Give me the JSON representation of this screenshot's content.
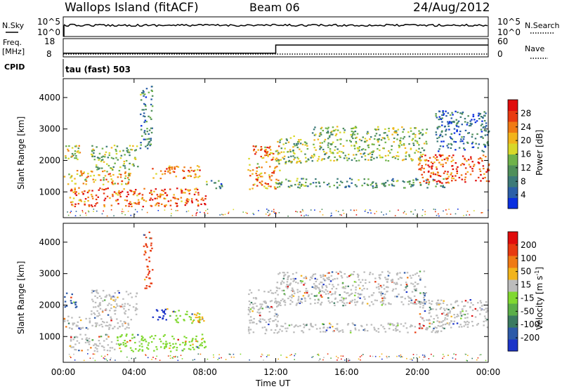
{
  "header": {
    "station": "Wallops Island (fitACF)",
    "beam": "Beam 06",
    "date": "24/Aug/2012"
  },
  "params": {
    "nsky_label": "N.Sky",
    "nsearch_label": "N.Search",
    "freq_label": "Freq.",
    "freq_unit": "[MHz]",
    "nave_label": "Nave",
    "cpid_label": "CPID",
    "cpid_value": "tau (fast) 503",
    "noise_ticks": [
      "10^5",
      "10^0"
    ],
    "freq_ticks": [
      "18",
      "8"
    ],
    "nave_ticks": [
      "60",
      "0"
    ],
    "freq_steps": [
      {
        "t": 0.0,
        "mhz": 10.0
      },
      {
        "t": 12.0,
        "mhz": 14.5
      },
      {
        "t": 24.0,
        "mhz": 14.5
      }
    ]
  },
  "chart_data": [
    {
      "type": "heatmap",
      "name": "power",
      "xlabel": "",
      "ylabel": "Slant Range [km]",
      "xlim": [
        0,
        24
      ],
      "ylim": [
        180,
        4600
      ],
      "ytick_values": [
        1000,
        2000,
        3000,
        4000
      ],
      "ytick_labels": [
        "1000",
        "2000",
        "3000",
        "4000"
      ],
      "colorbar": {
        "label": "Power [dB]",
        "tick_labels": [
          "4",
          "8",
          "12",
          "16",
          "20",
          "24",
          "28"
        ],
        "colors": [
          "#0a2fe0",
          "#2b5fa8",
          "#3c7a78",
          "#4f8f5a",
          "#6fb24a",
          "#d8d82a",
          "#f2b41c",
          "#f07a14",
          "#e83a10",
          "#e00c0c"
        ]
      },
      "echoes": [
        {
          "t0": 0.0,
          "t1": 1.0,
          "r0": 2050,
          "r1": 2500,
          "level": 0.55
        },
        {
          "t0": 0.0,
          "t1": 3.8,
          "r0": 1250,
          "r1": 1700,
          "level": 0.65
        },
        {
          "t0": 1.5,
          "t1": 4.2,
          "r0": 1700,
          "r1": 2500,
          "level": 0.45
        },
        {
          "t0": 0.3,
          "t1": 8.0,
          "r0": 550,
          "r1": 1150,
          "level": 0.8
        },
        {
          "t0": 4.3,
          "t1": 5.0,
          "r0": 2400,
          "r1": 4400,
          "level": 0.3
        },
        {
          "t0": 5.0,
          "t1": 7.7,
          "r0": 1450,
          "r1": 1850,
          "level": 0.75
        },
        {
          "t0": 8.0,
          "t1": 9.0,
          "r0": 1100,
          "r1": 1400,
          "level": 0.3
        },
        {
          "t0": 10.4,
          "t1": 12.2,
          "r0": 1100,
          "r1": 2500,
          "level": 0.7
        },
        {
          "t0": 12.0,
          "t1": 14.0,
          "r0": 1900,
          "r1": 2800,
          "level": 0.45
        },
        {
          "t0": 12.0,
          "t1": 21.5,
          "r0": 1150,
          "r1": 1450,
          "level": 0.35
        },
        {
          "t0": 14.0,
          "t1": 20.5,
          "r0": 2000,
          "r1": 3100,
          "level": 0.45
        },
        {
          "t0": 20.0,
          "t1": 24.0,
          "r0": 1300,
          "r1": 2200,
          "level": 0.85
        },
        {
          "t0": 21.0,
          "t1": 24.0,
          "r0": 2300,
          "r1": 3600,
          "level": 0.2
        }
      ]
    },
    {
      "type": "heatmap",
      "name": "velocity",
      "xlabel": "Time UT",
      "ylabel": "Slant Range [km]",
      "xlim": [
        0,
        24
      ],
      "ylim": [
        180,
        4600
      ],
      "ytick_values": [
        1000,
        2000,
        3000,
        4000
      ],
      "ytick_labels": [
        "1000",
        "2000",
        "3000",
        "4000"
      ],
      "xtick_values": [
        0,
        4,
        8,
        12,
        16,
        20,
        24
      ],
      "xtick_labels": [
        "00:00",
        "04:00",
        "08:00",
        "12:00",
        "16:00",
        "20:00",
        "00:00"
      ],
      "colorbar": {
        "label": "Velocity [m s",
        "label_sup": "-1",
        "label_end": "]",
        "tick_labels": [
          "200",
          "100",
          "50",
          "15",
          "-15",
          "-50",
          "-100",
          "-200"
        ],
        "colors": [
          "#1c34c8",
          "#2d5aa8",
          "#3a7a60",
          "#5aae48",
          "#80d830",
          "#bcbcbc",
          "#f2b41c",
          "#f07a14",
          "#e83a10",
          "#e00c0c"
        ]
      },
      "echoes": [
        {
          "t0": 0.0,
          "t1": 0.8,
          "r0": 1950,
          "r1": 2400,
          "vel": "#2d5aa8"
        },
        {
          "t0": 0.0,
          "t1": 3.8,
          "r0": 1250,
          "r1": 1700,
          "vel": "#bcbcbc"
        },
        {
          "t0": 1.5,
          "t1": 4.2,
          "r0": 1700,
          "r1": 2500,
          "vel": "#bcbcbc"
        },
        {
          "t0": 0.3,
          "t1": 3.0,
          "r0": 550,
          "r1": 1100,
          "vel": "#bcbcbc"
        },
        {
          "t0": 3.0,
          "t1": 8.0,
          "r0": 550,
          "r1": 1100,
          "vel": "#80d830"
        },
        {
          "t0": 4.5,
          "t1": 5.0,
          "r0": 2500,
          "r1": 4400,
          "vel": "#e83a10"
        },
        {
          "t0": 5.0,
          "t1": 6.2,
          "r0": 1550,
          "r1": 1900,
          "vel": "#1c34c8"
        },
        {
          "t0": 6.2,
          "t1": 7.7,
          "r0": 1450,
          "r1": 1850,
          "vel": "#80d830"
        },
        {
          "t0": 7.2,
          "t1": 7.9,
          "r0": 1450,
          "r1": 1800,
          "vel": "#f2b41c"
        },
        {
          "t0": 10.4,
          "t1": 12.2,
          "r0": 1100,
          "r1": 2500,
          "vel": "#bcbcbc"
        },
        {
          "t0": 12.0,
          "t1": 21.5,
          "r0": 1150,
          "r1": 1450,
          "vel": "#bcbcbc"
        },
        {
          "t0": 12.0,
          "t1": 20.5,
          "r0": 2000,
          "r1": 3100,
          "vel": "#bcbcbc"
        },
        {
          "t0": 20.0,
          "t1": 24.0,
          "r0": 1300,
          "r1": 2200,
          "vel": "#bcbcbc"
        }
      ]
    }
  ]
}
